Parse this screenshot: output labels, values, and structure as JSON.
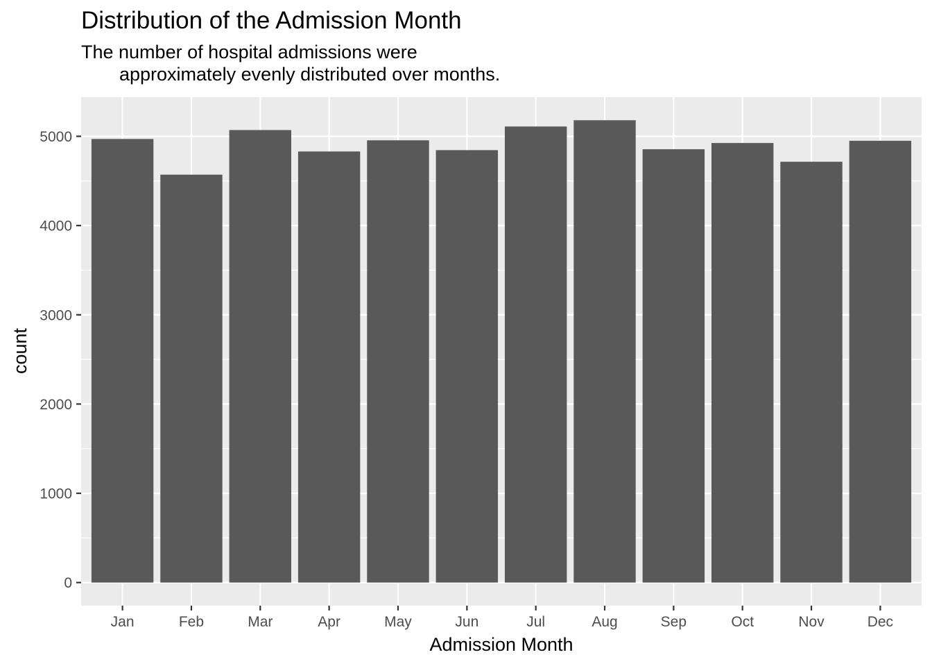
{
  "chart_data": {
    "type": "bar",
    "title": "Distribution of the Admission Month",
    "subtitle_lines": [
      "The number of hospital admissions were",
      "approximately evenly distributed over months."
    ],
    "xlabel": "Admission Month",
    "ylabel": "count",
    "categories": [
      "Jan",
      "Feb",
      "Mar",
      "Apr",
      "May",
      "Jun",
      "Jul",
      "Aug",
      "Sep",
      "Oct",
      "Nov",
      "Dec"
    ],
    "values": [
      4970,
      4570,
      5070,
      4830,
      4955,
      4845,
      5110,
      5180,
      4855,
      4925,
      4715,
      4950
    ],
    "yticks": [
      0,
      1000,
      2000,
      3000,
      4000,
      5000
    ],
    "ylim": [
      -259,
      5439
    ],
    "grid": true,
    "legend": "none",
    "colors": {
      "panel": "#ebebeb",
      "grid": "#ffffff",
      "bar": "#595959",
      "tick": "#333333"
    }
  }
}
